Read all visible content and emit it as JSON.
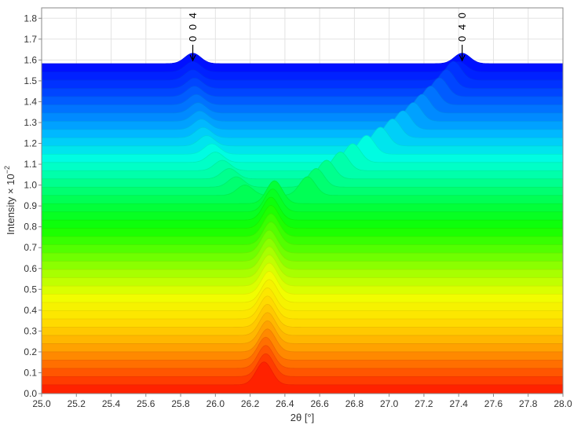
{
  "chart_data": {
    "type": "area",
    "xlabel": "2θ [°]",
    "ylabel_main": "Intensity × 10",
    "ylabel_exponent": "−2",
    "xlim": [
      25.0,
      28.0
    ],
    "ylim": [
      0.0,
      1.85
    ],
    "x_ticks": [
      "25.0",
      "25.2",
      "25.4",
      "25.6",
      "25.8",
      "26.0",
      "26.2",
      "26.4",
      "26.6",
      "26.8",
      "27.0",
      "27.2",
      "27.4",
      "27.6",
      "27.8",
      "28.0"
    ],
    "y_ticks": [
      "0.0",
      "0.1",
      "0.2",
      "0.3",
      "0.4",
      "0.5",
      "0.6",
      "0.7",
      "0.8",
      "0.9",
      "1.0",
      "1.1",
      "1.2",
      "1.3",
      "1.4",
      "1.5",
      "1.6",
      "1.7",
      "1.8"
    ],
    "grid": true,
    "waterfall": {
      "n_traces": 40,
      "trace_offset": 0.0395,
      "peak_width": 0.045,
      "traces": [
        {
          "base": 0.0,
          "peaks": [
            [
              26.28,
              0.11
            ]
          ]
        },
        {
          "base": 0.0395,
          "peaks": [
            [
              26.29,
              0.11
            ]
          ]
        },
        {
          "base": 0.079,
          "peaks": [
            [
              26.29,
              0.11
            ]
          ]
        },
        {
          "base": 0.1185,
          "peaks": [
            [
              26.29,
              0.11
            ]
          ]
        },
        {
          "base": 0.158,
          "peaks": [
            [
              26.3,
              0.11
            ]
          ]
        },
        {
          "base": 0.1975,
          "peaks": [
            [
              26.3,
              0.11
            ]
          ]
        },
        {
          "base": 0.237,
          "peaks": [
            [
              26.3,
              0.11
            ]
          ]
        },
        {
          "base": 0.2765,
          "peaks": [
            [
              26.3,
              0.11
            ]
          ]
        },
        {
          "base": 0.316,
          "peaks": [
            [
              26.3,
              0.11
            ]
          ]
        },
        {
          "base": 0.3555,
          "peaks": [
            [
              26.3,
              0.11
            ]
          ]
        },
        {
          "base": 0.395,
          "peaks": [
            [
              26.31,
              0.11
            ]
          ]
        },
        {
          "base": 0.4345,
          "peaks": [
            [
              26.31,
              0.11
            ]
          ]
        },
        {
          "base": 0.474,
          "peaks": [
            [
              26.31,
              0.11
            ]
          ]
        },
        {
          "base": 0.5135,
          "peaks": [
            [
              26.31,
              0.11
            ]
          ]
        },
        {
          "base": 0.553,
          "peaks": [
            [
              26.31,
              0.11
            ]
          ]
        },
        {
          "base": 0.5925,
          "peaks": [
            [
              26.31,
              0.11
            ]
          ]
        },
        {
          "base": 0.632,
          "peaks": [
            [
              26.31,
              0.11
            ]
          ]
        },
        {
          "base": 0.6715,
          "peaks": [
            [
              26.32,
              0.11
            ]
          ]
        },
        {
          "base": 0.711,
          "peaks": [
            [
              26.32,
              0.11
            ]
          ]
        },
        {
          "base": 0.7505,
          "peaks": [
            [
              26.32,
              0.11
            ]
          ]
        },
        {
          "base": 0.79,
          "peaks": [
            [
              26.32,
              0.11
            ]
          ]
        },
        {
          "base": 0.8295,
          "peaks": [
            [
              26.33,
              0.11
            ]
          ]
        },
        {
          "base": 0.869,
          "peaks": [
            [
              26.34,
              0.11
            ]
          ]
        },
        {
          "base": 0.9085,
          "peaks": [
            [
              26.17,
              0.05
            ],
            [
              26.53,
              0.09
            ]
          ]
        },
        {
          "base": 0.948,
          "peaks": [
            [
              26.12,
              0.05
            ],
            [
              26.58,
              0.09
            ]
          ]
        },
        {
          "base": 0.9875,
          "peaks": [
            [
              26.08,
              0.05
            ],
            [
              26.64,
              0.09
            ]
          ]
        },
        {
          "base": 1.027,
          "peaks": [
            [
              26.04,
              0.05
            ],
            [
              26.72,
              0.09
            ]
          ]
        },
        {
          "base": 1.0665,
          "peaks": [
            [
              26.0,
              0.05
            ],
            [
              26.79,
              0.09
            ]
          ]
        },
        {
          "base": 1.106,
          "peaks": [
            [
              25.98,
              0.05
            ],
            [
              26.87,
              0.09
            ]
          ]
        },
        {
          "base": 1.1455,
          "peaks": [
            [
              25.95,
              0.05
            ],
            [
              26.95,
              0.09
            ]
          ]
        },
        {
          "base": 1.185,
          "peaks": [
            [
              25.93,
              0.05
            ],
            [
              27.02,
              0.09
            ]
          ]
        },
        {
          "base": 1.2245,
          "peaks": [
            [
              25.92,
              0.05
            ],
            [
              27.08,
              0.09
            ]
          ]
        },
        {
          "base": 1.264,
          "peaks": [
            [
              25.91,
              0.05
            ],
            [
              27.14,
              0.09
            ]
          ]
        },
        {
          "base": 1.3035,
          "peaks": [
            [
              25.9,
              0.05
            ],
            [
              27.19,
              0.09
            ]
          ]
        },
        {
          "base": 1.343,
          "peaks": [
            [
              25.89,
              0.05
            ],
            [
              27.24,
              0.09
            ]
          ]
        },
        {
          "base": 1.3825,
          "peaks": [
            [
              25.88,
              0.05
            ],
            [
              27.29,
              0.09
            ]
          ]
        },
        {
          "base": 1.422,
          "peaks": [
            [
              25.88,
              0.05
            ],
            [
              27.33,
              0.09
            ]
          ]
        },
        {
          "base": 1.4615,
          "peaks": [
            [
              25.87,
              0.05
            ],
            [
              27.37,
              0.09
            ]
          ]
        },
        {
          "base": 1.501,
          "peaks": [
            [
              25.87,
              0.05
            ],
            [
              27.4,
              0.05
            ]
          ]
        },
        {
          "base": 1.5405,
          "peaks": [
            [
              25.87,
              0.05
            ],
            [
              27.42,
              0.05
            ]
          ]
        }
      ]
    },
    "colormap": [
      "#ff2200",
      "#ff6a00",
      "#ffb000",
      "#ffe000",
      "#f0ff00",
      "#aaff00",
      "#5aff00",
      "#10ff00",
      "#00ff40",
      "#00ff90",
      "#00ffe0",
      "#00c0ff",
      "#0080ff",
      "#0040ff",
      "#0010ff"
    ],
    "annotations": [
      {
        "label": "0 0 4",
        "x": 25.87,
        "y": 1.59
      },
      {
        "label": "0 4 0",
        "x": 27.42,
        "y": 1.59
      }
    ]
  }
}
